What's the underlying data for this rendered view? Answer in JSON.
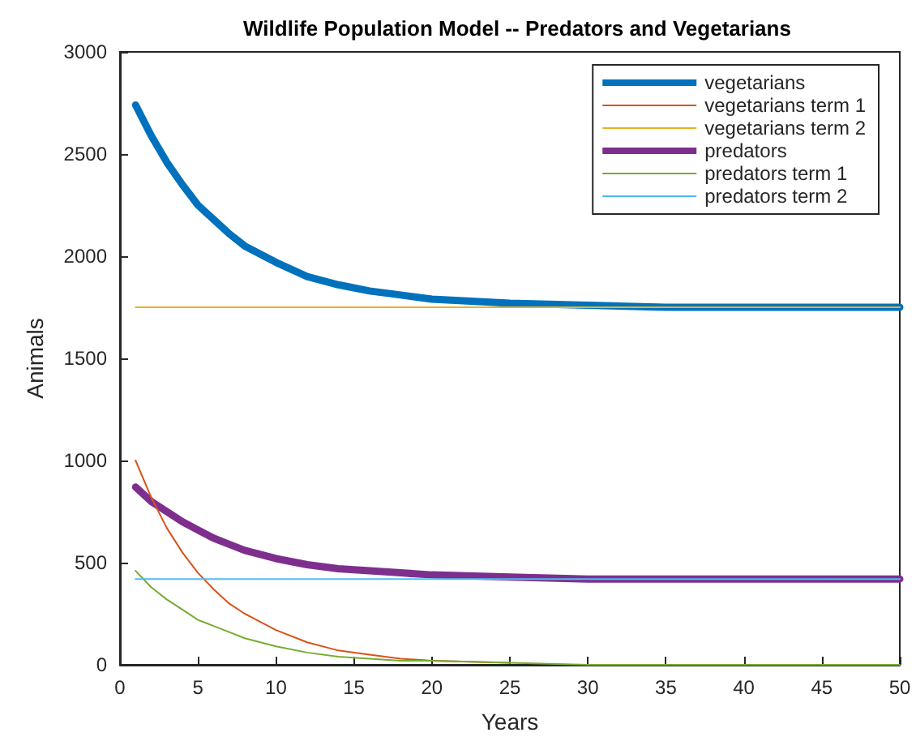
{
  "chart_data": {
    "type": "line",
    "title": "Wildlife Population Model -- Predators and Vegetarians",
    "xlabel": "Years",
    "ylabel": "Animals",
    "x": [
      1,
      2,
      3,
      4,
      5,
      6,
      7,
      8,
      10,
      12,
      14,
      16,
      18,
      20,
      25,
      30,
      35,
      40,
      45,
      50
    ],
    "series": [
      {
        "name": "vegetarians",
        "color": "#0072bd",
        "values": [
          2740,
          2590,
          2460,
          2350,
          2250,
          2180,
          2110,
          2050,
          1970,
          1900,
          1860,
          1830,
          1810,
          1790,
          1770,
          1760,
          1750,
          1750,
          1750,
          1750
        ]
      },
      {
        "name": "vegetarians term 1",
        "color": "#d95319",
        "values": [
          1000,
          820,
          670,
          550,
          450,
          370,
          300,
          250,
          170,
          110,
          70,
          50,
          30,
          20,
          10,
          null,
          null,
          null,
          null,
          null
        ]
      },
      {
        "name": "vegetarians term 2",
        "color": "#edb120",
        "values": [
          1750,
          1750,
          1750,
          1750,
          1750,
          1750,
          1750,
          1750,
          1750,
          1750,
          1750,
          1750,
          1750,
          1750,
          1750,
          1750,
          1750,
          1750,
          1750,
          1750
        ]
      },
      {
        "name": "predators",
        "color": "#7e2f8e",
        "values": [
          870,
          800,
          750,
          700,
          660,
          620,
          590,
          560,
          520,
          490,
          470,
          460,
          450,
          440,
          430,
          420,
          420,
          420,
          420,
          420
        ]
      },
      {
        "name": "predators term 1",
        "color": "#77ac30",
        "values": [
          460,
          380,
          320,
          270,
          220,
          190,
          160,
          130,
          90,
          60,
          40,
          30,
          20,
          20,
          10,
          0,
          0,
          0,
          0,
          0
        ]
      },
      {
        "name": "predators term 2",
        "color": "#4dbeee",
        "values": [
          420,
          420,
          420,
          420,
          420,
          420,
          420,
          420,
          420,
          420,
          420,
          420,
          420,
          420,
          420,
          420,
          420,
          420,
          420,
          420
        ]
      }
    ],
    "xlim": [
      0,
      50
    ],
    "xticks": [
      0,
      5,
      10,
      15,
      20,
      25,
      30,
      35,
      40,
      45,
      50
    ],
    "ylim": [
      0,
      3000
    ],
    "yticks": [
      0,
      500,
      1000,
      1500,
      2000,
      2500,
      3000
    ],
    "legend": "top right",
    "grid": false,
    "marker": "none",
    "line_style": "solid"
  }
}
